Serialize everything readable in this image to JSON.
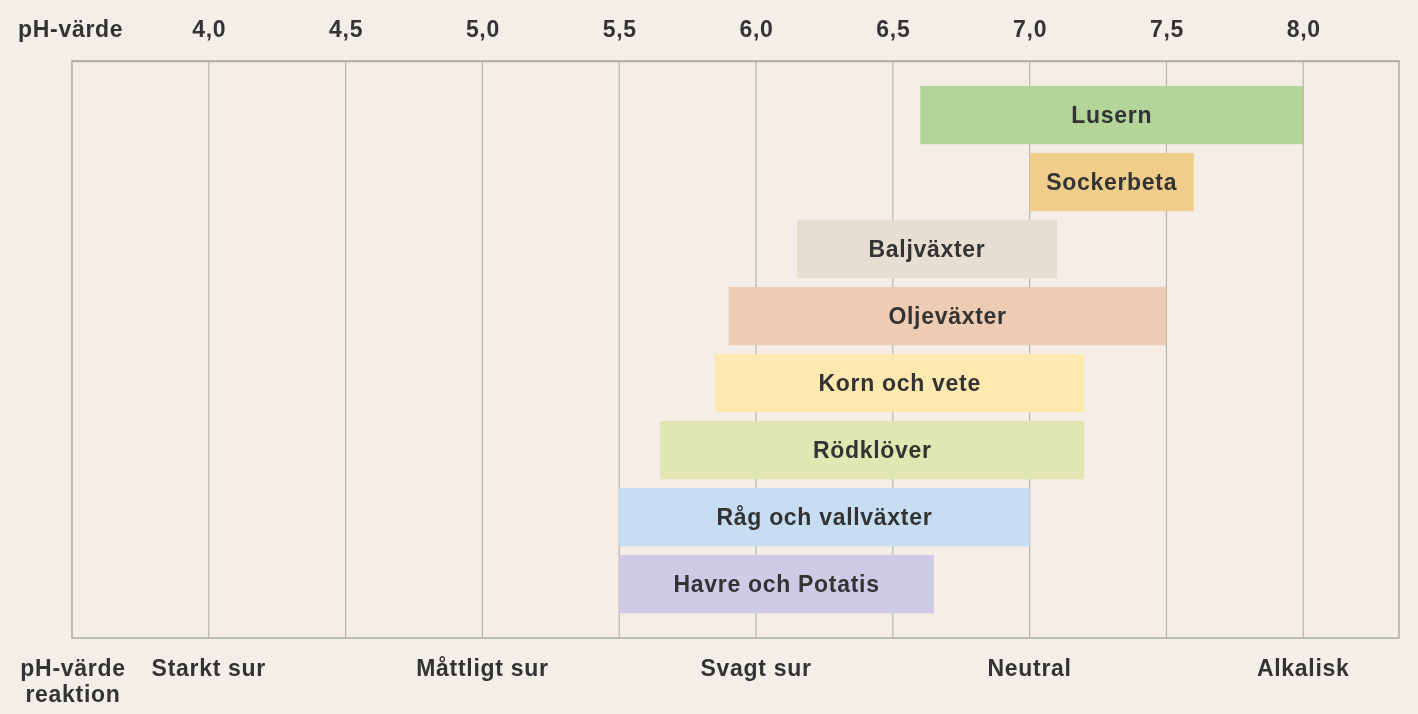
{
  "chart_data": {
    "type": "bar",
    "orientation": "horizontal",
    "categories": [
      "Lusern",
      "Sockerbeta",
      "Baljväxter",
      "Oljeväxter",
      "Korn och vete",
      "Rödklöver",
      "Råg och vallväxter",
      "Havre och Potatis"
    ],
    "base": [
      6.6,
      7.0,
      6.15,
      5.9,
      5.85,
      5.65,
      5.5,
      5.5
    ],
    "values": [
      1.4,
      0.6,
      0.95,
      1.6,
      1.35,
      1.55,
      1.5,
      1.15
    ],
    "colors": [
      "#b3d59a",
      "#f1cd8b",
      "#e6ded1",
      "#eecbb3",
      "#fde8b0",
      "#e0e7b2",
      "#c7ddf2",
      "#cfcbe7"
    ],
    "xlabel": "pH-värde",
    "xlim": [
      3.5,
      8.35
    ],
    "xticks": [
      {
        "value": 4,
        "label": "4,0"
      },
      {
        "value": 4.5,
        "label": "4,5"
      },
      {
        "value": 5,
        "label": "5,0"
      },
      {
        "value": 5.5,
        "label": "5,5"
      },
      {
        "value": 6,
        "label": "6,0"
      },
      {
        "value": 6.5,
        "label": "6,5"
      },
      {
        "value": 7,
        "label": "7,0"
      },
      {
        "value": 7.5,
        "label": "7,5"
      },
      {
        "value": 8,
        "label": "8,0"
      }
    ],
    "annotations": [
      "pH-värde reaktion",
      "Starkt sur",
      "Måttligt sur",
      "Svagt sur",
      "Neutral",
      "Alkalisk"
    ],
    "grid": "x"
  }
}
